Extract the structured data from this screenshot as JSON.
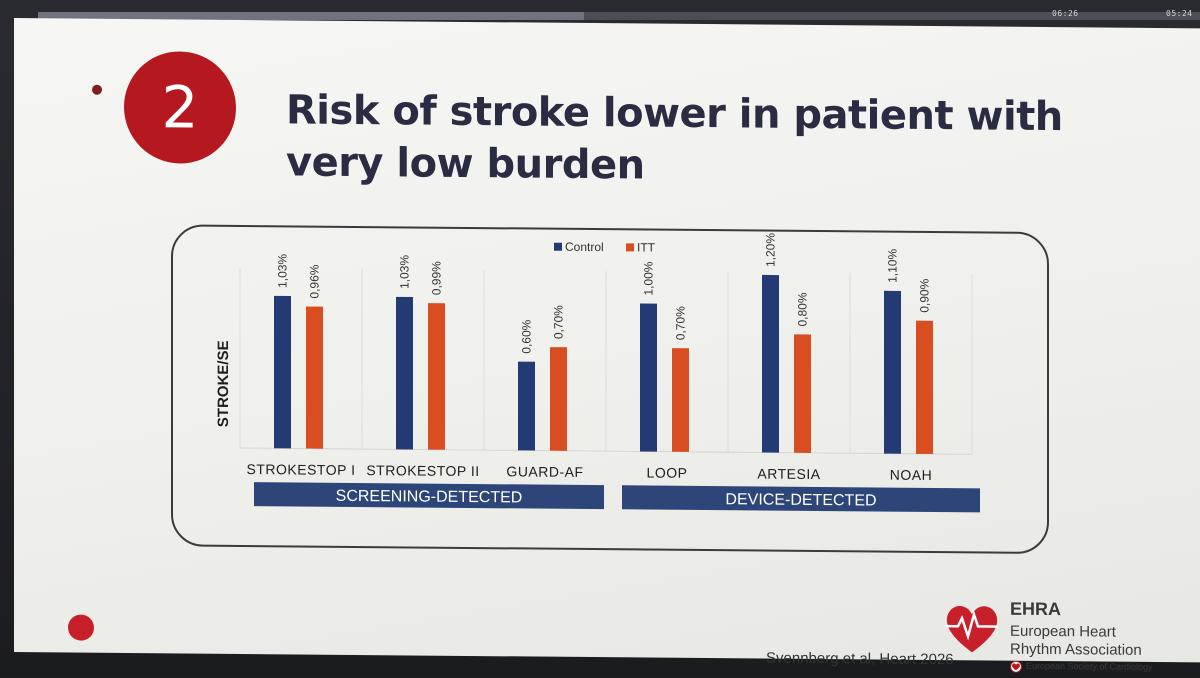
{
  "slide": {
    "number": "2",
    "title": "Risk of stroke lower in patient with very low burden",
    "citation": "Svennberg et al, Heart 2026"
  },
  "timers": {
    "left": "06:26",
    "right": "05:24"
  },
  "progress": 0.47,
  "logo": {
    "name": "EHRA",
    "line1": "European Heart",
    "line2": "Rhythm Association",
    "society": "European Society of Cardiology"
  },
  "colors": {
    "control": "#243a74",
    "itt": "#d94e21",
    "group_band": "#2d4579",
    "badge": "#b5191f"
  },
  "chart_data": {
    "type": "bar",
    "ylabel": "STROKE/SE",
    "legend_position": "top-center",
    "categories": [
      "STROKESTOP I",
      "STROKESTOP II",
      "GUARD-AF",
      "LOOP",
      "ARTESIA",
      "NOAH"
    ],
    "series": [
      {
        "name": "Control",
        "values": [
          1.03,
          1.03,
          0.6,
          1.0,
          1.2,
          1.1
        ],
        "labels": [
          "1,03%",
          "1,03%",
          "0,60%",
          "1,00%",
          "1,20%",
          "1,10%"
        ]
      },
      {
        "name": "ITT",
        "values": [
          0.96,
          0.99,
          0.7,
          0.7,
          0.8,
          0.9
        ],
        "labels": [
          "0,96%",
          "0,99%",
          "0,70%",
          "0,70%",
          "0,80%",
          "0,90%"
        ]
      }
    ],
    "groups": [
      {
        "label": "SCREENING-DETECTED",
        "categories": [
          "STROKESTOP I",
          "STROKESTOP II",
          "GUARD-AF"
        ]
      },
      {
        "label": "DEVICE-DETECTED",
        "categories": [
          "LOOP",
          "ARTESIA",
          "NOAH"
        ]
      }
    ],
    "ylim": [
      0,
      1.2
    ],
    "grid": "vertical separators"
  }
}
